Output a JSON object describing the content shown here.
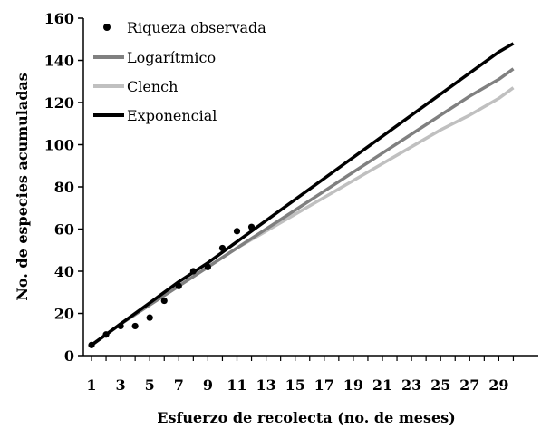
{
  "chart_data": {
    "type": "line",
    "title": "",
    "xlabel": "Esfuerzo de recolecta (no. de meses)",
    "ylabel": "No. de especies acumuladas",
    "xlim": [
      1,
      30
    ],
    "ylim": [
      0,
      160
    ],
    "x_tick_labels": [
      "1",
      "3",
      "5",
      "7",
      "9",
      "11",
      "13",
      "15",
      "17",
      "19",
      "21",
      "23",
      "25",
      "27",
      "29"
    ],
    "y_tick_labels": [
      "0",
      "20",
      "40",
      "60",
      "80",
      "100",
      "120",
      "140",
      "160"
    ],
    "grid": false,
    "legend_position": "top-left",
    "observed": {
      "name": "Riqueza observada",
      "x": [
        1,
        2,
        3,
        4,
        5,
        6,
        7,
        8,
        9,
        10,
        11,
        12
      ],
      "y": [
        5,
        10,
        14,
        14,
        18,
        26,
        33,
        40,
        42,
        51,
        59,
        61
      ]
    },
    "series": [
      {
        "name": "Logarítmico",
        "color": "#808080",
        "x": [
          1,
          3,
          5,
          7,
          9,
          11,
          13,
          15,
          17,
          19,
          21,
          23,
          25,
          27,
          29,
          30
        ],
        "y": [
          5,
          15,
          24,
          33,
          42,
          51,
          60,
          69,
          78,
          87,
          96,
          105,
          114,
          123,
          131,
          136
        ]
      },
      {
        "name": "Clench",
        "color": "#c0c0c0",
        "x": [
          1,
          3,
          5,
          7,
          9,
          11,
          13,
          15,
          17,
          19,
          21,
          23,
          25,
          27,
          29,
          30
        ],
        "y": [
          5,
          15,
          24,
          33,
          42,
          51,
          59,
          67,
          75,
          83,
          91,
          99,
          107,
          114,
          122,
          127
        ]
      },
      {
        "name": "Exponencial",
        "color": "#000000",
        "x": [
          1,
          3,
          5,
          7,
          9,
          11,
          13,
          15,
          17,
          19,
          21,
          23,
          25,
          27,
          29,
          30
        ],
        "y": [
          5,
          15,
          25,
          35,
          44,
          54,
          64,
          74,
          84,
          94,
          104,
          114,
          124,
          134,
          144,
          148
        ]
      }
    ]
  }
}
